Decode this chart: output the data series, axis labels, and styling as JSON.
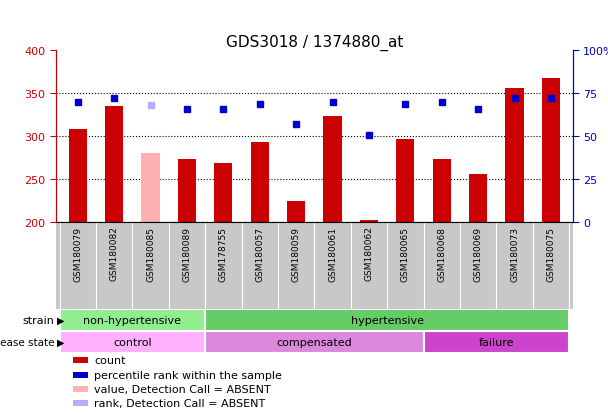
{
  "title": "GDS3018 / 1374880_at",
  "samples": [
    "GSM180079",
    "GSM180082",
    "GSM180085",
    "GSM180089",
    "GSM178755",
    "GSM180057",
    "GSM180059",
    "GSM180061",
    "GSM180062",
    "GSM180065",
    "GSM180068",
    "GSM180069",
    "GSM180073",
    "GSM180075"
  ],
  "count_values": [
    308,
    335,
    280,
    273,
    269,
    293,
    225,
    323,
    203,
    297,
    273,
    256,
    356,
    368
  ],
  "count_absent": [
    false,
    false,
    true,
    false,
    false,
    false,
    false,
    false,
    false,
    false,
    false,
    false,
    false,
    false
  ],
  "percentile_values": [
    70,
    72,
    68,
    66,
    66,
    69,
    57,
    70,
    51,
    69,
    70,
    66,
    72,
    72
  ],
  "percentile_absent": [
    false,
    false,
    true,
    false,
    false,
    false,
    false,
    false,
    false,
    false,
    false,
    false,
    false,
    false
  ],
  "ylim_left": [
    200,
    400
  ],
  "ylim_right": [
    0,
    100
  ],
  "yticks_left": [
    200,
    250,
    300,
    350,
    400
  ],
  "yticks_right": [
    0,
    25,
    50,
    75,
    100
  ],
  "bar_color": "#cc0000",
  "bar_absent_color": "#ffb0b0",
  "dot_color": "#0000cc",
  "dot_absent_color": "#b0b0ff",
  "bg_color": "#ffffff",
  "label_bg_color": "#c8c8c8",
  "strain_groups": [
    {
      "label": "non-hypertensive",
      "start": 0,
      "end": 4,
      "color": "#90ee90"
    },
    {
      "label": "hypertensive",
      "start": 4,
      "end": 14,
      "color": "#66cc66"
    }
  ],
  "disease_groups": [
    {
      "label": "control",
      "start": 0,
      "end": 4,
      "color": "#ffb0ff"
    },
    {
      "label": "compensated",
      "start": 4,
      "end": 10,
      "color": "#dd88dd"
    },
    {
      "label": "failure",
      "start": 10,
      "end": 14,
      "color": "#cc44cc"
    }
  ],
  "legend_items": [
    {
      "label": "count",
      "color": "#cc0000"
    },
    {
      "label": "percentile rank within the sample",
      "color": "#0000cc"
    },
    {
      "label": "value, Detection Call = ABSENT",
      "color": "#ffb0b0"
    },
    {
      "label": "rank, Detection Call = ABSENT",
      "color": "#b0b0ff"
    }
  ],
  "tick_color_left": "#cc0000",
  "tick_color_right": "#0000cc",
  "dotted_lines": [
    250,
    300,
    350
  ]
}
